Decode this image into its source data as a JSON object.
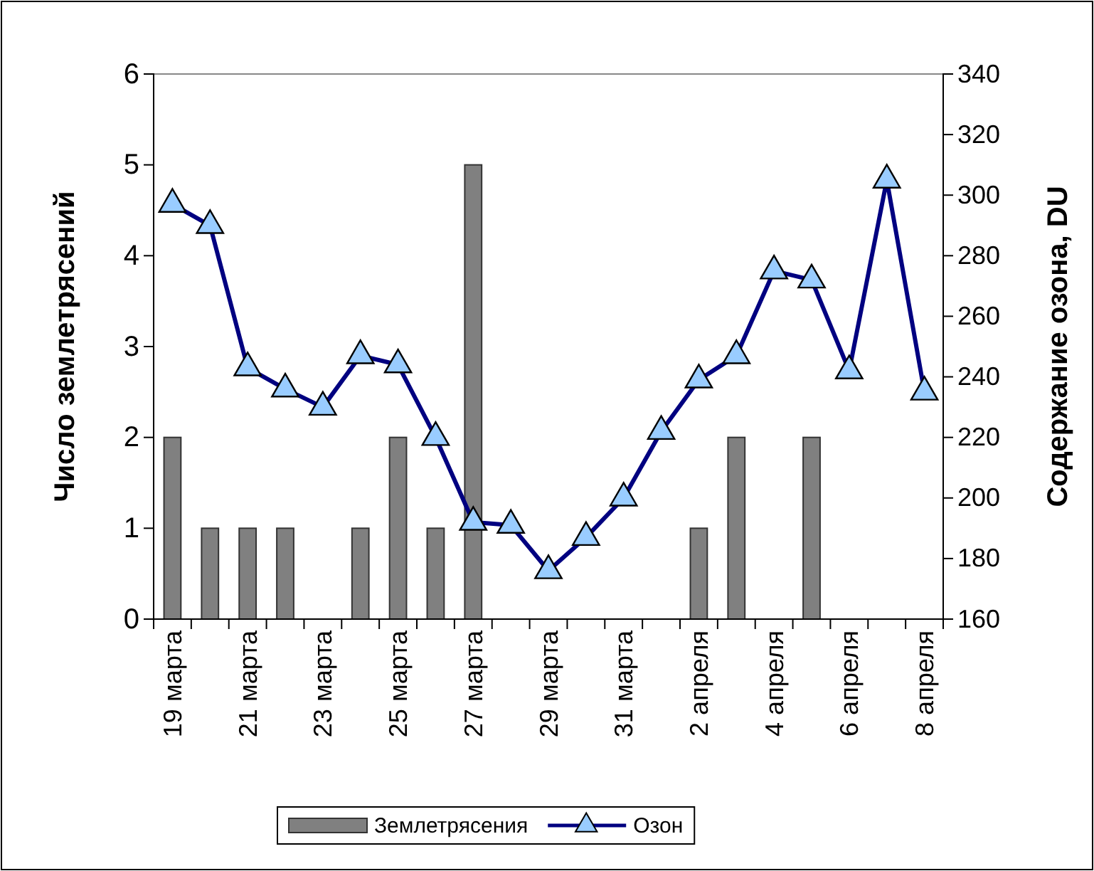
{
  "chart_data": {
    "type": "bar",
    "categories": [
      "19 марта",
      null,
      "21 марта",
      null,
      "23 марта",
      null,
      "25 марта",
      null,
      "27 марта",
      null,
      "29 марта",
      null,
      "31 марта",
      null,
      "2 апреля",
      null,
      "4 апреля",
      null,
      "6 апреля",
      null,
      "8 апреля"
    ],
    "ylabel": "Число землетрясений",
    "y2label": "Содержание озона, DU",
    "ylim": [
      0,
      6
    ],
    "yticks": [
      0,
      1,
      2,
      3,
      4,
      5,
      6
    ],
    "y2lim": [
      160,
      340
    ],
    "y2ticks": [
      160,
      180,
      200,
      220,
      240,
      260,
      280,
      300,
      320,
      340
    ],
    "legend": "bottom",
    "grid": false,
    "series": [
      {
        "name": "Землетрясения",
        "color": "#808080",
        "values": [
          2,
          1,
          1,
          1,
          0,
          1,
          2,
          1,
          5,
          0,
          0,
          0,
          0,
          0,
          1,
          2,
          0,
          2,
          0,
          0,
          0
        ]
      },
      {
        "name": "Озон",
        "type": "line",
        "axis": "y2",
        "color": "#000080",
        "marker": "triangle",
        "values": [
          297,
          290,
          243,
          236,
          230,
          247,
          244,
          220,
          192,
          191,
          176,
          187,
          200,
          222,
          239,
          247,
          275,
          272,
          242,
          305,
          235
        ]
      }
    ]
  }
}
